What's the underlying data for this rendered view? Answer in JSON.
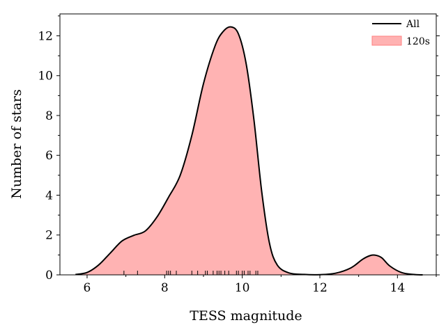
{
  "chart_data": {
    "type": "area",
    "xlabel": "TESS magnitude",
    "ylabel": "Number of stars",
    "xlim": [
      5.3,
      15.0
    ],
    "ylim": [
      0,
      13.1
    ],
    "x_major_ticks": [
      6,
      8,
      10,
      12,
      14
    ],
    "x_minor_ticks": [
      7,
      9,
      11,
      13,
      15
    ],
    "y_major_ticks": [
      0,
      2,
      4,
      6,
      8,
      10,
      12
    ],
    "y_minor_ticks": [
      1,
      3,
      5,
      7,
      9,
      11,
      13
    ],
    "series": [
      {
        "name": "All",
        "style": "line",
        "color": "#000000",
        "x": [
          5.7,
          6.0,
          6.3,
          6.6,
          6.9,
          7.2,
          7.5,
          7.8,
          8.1,
          8.4,
          8.7,
          9.0,
          9.3,
          9.5,
          9.7,
          9.9,
          10.1,
          10.3,
          10.5,
          10.7,
          10.9,
          11.2,
          11.6,
          12.0,
          12.4,
          12.8,
          13.1,
          13.3,
          13.45,
          13.6,
          13.8,
          14.1,
          14.4,
          14.65
        ],
        "y": [
          0.02,
          0.12,
          0.5,
          1.1,
          1.7,
          1.98,
          2.2,
          2.9,
          3.9,
          5.0,
          7.0,
          9.6,
          11.5,
          12.2,
          12.45,
          12.1,
          10.6,
          7.8,
          4.2,
          1.6,
          0.5,
          0.1,
          0.02,
          0.01,
          0.08,
          0.35,
          0.78,
          0.97,
          0.98,
          0.85,
          0.45,
          0.12,
          0.02,
          0.0
        ]
      },
      {
        "name": "120s",
        "style": "fill",
        "color": "#ff8080"
      }
    ],
    "rug": [
      6.95,
      7.3,
      8.05,
      8.1,
      8.15,
      8.3,
      8.7,
      8.85,
      9.05,
      9.1,
      9.25,
      9.35,
      9.4,
      9.45,
      9.55,
      9.65,
      9.85,
      9.9,
      10.0,
      10.05,
      10.15,
      10.2,
      10.35,
      10.4
    ],
    "legend": {
      "position": "top-right",
      "entries": [
        "All",
        "120s"
      ]
    },
    "grid": false
  }
}
